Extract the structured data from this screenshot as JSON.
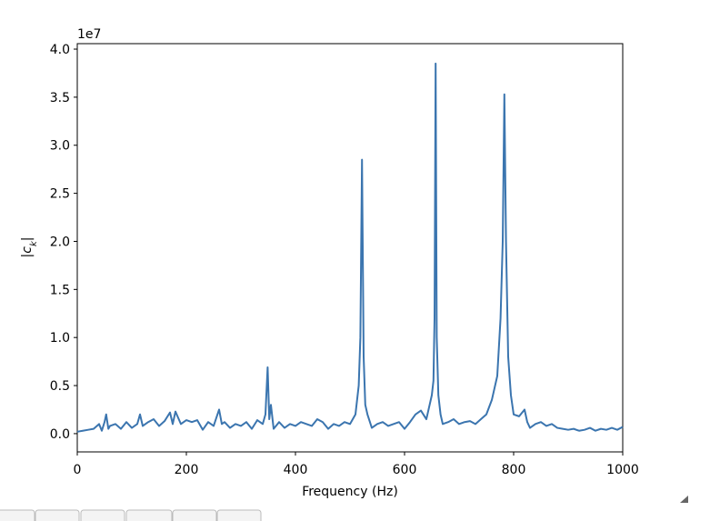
{
  "chart_data": {
    "type": "line",
    "xlabel": "Frequency (Hz)",
    "ylabel": "|c_k|",
    "offset_text": "1e7",
    "xlim": [
      0,
      1000
    ],
    "ylim": [
      -0.19,
      4.057
    ],
    "xticks": [
      0,
      200,
      400,
      600,
      800,
      1000
    ],
    "yticks": [
      {
        "value": 0,
        "label": "0.0"
      },
      {
        "value": 0.5,
        "label": "0.5"
      },
      {
        "value": 1,
        "label": "1.0"
      },
      {
        "value": 1.5,
        "label": "1.5"
      },
      {
        "value": 2,
        "label": "2.0"
      },
      {
        "value": 2.5,
        "label": "2.5"
      },
      {
        "value": 3,
        "label": "3.0"
      },
      {
        "value": 3.5,
        "label": "3.5"
      },
      {
        "value": 4,
        "label": "4.0"
      }
    ],
    "color": "#3b75af",
    "x": [
      0,
      10,
      20,
      30,
      40,
      45,
      50,
      53,
      57,
      60,
      70,
      80,
      90,
      100,
      110,
      115,
      120,
      130,
      140,
      150,
      160,
      170,
      175,
      180,
      190,
      200,
      210,
      220,
      230,
      240,
      250,
      260,
      265,
      270,
      280,
      290,
      300,
      310,
      320,
      330,
      340,
      345,
      349,
      352,
      355,
      360,
      370,
      380,
      390,
      400,
      410,
      420,
      430,
      440,
      450,
      460,
      470,
      480,
      490,
      500,
      510,
      516,
      519,
      522,
      525,
      528,
      532,
      540,
      550,
      560,
      570,
      580,
      590,
      600,
      610,
      620,
      630,
      640,
      650,
      653,
      655,
      657,
      659,
      662,
      666,
      670,
      680,
      690,
      700,
      710,
      720,
      730,
      740,
      750,
      760,
      770,
      776,
      780,
      783,
      786,
      790,
      795,
      800,
      810,
      820,
      825,
      830,
      840,
      850,
      860,
      870,
      880,
      890,
      900,
      910,
      920,
      930,
      940,
      950,
      960,
      970,
      980,
      990,
      1000
    ],
    "values": [
      0.02,
      0.03,
      0.04,
      0.05,
      0.1,
      0.03,
      0.12,
      0.2,
      0.05,
      0.08,
      0.1,
      0.05,
      0.12,
      0.06,
      0.1,
      0.2,
      0.08,
      0.12,
      0.15,
      0.08,
      0.13,
      0.22,
      0.1,
      0.23,
      0.1,
      0.14,
      0.12,
      0.14,
      0.04,
      0.12,
      0.08,
      0.25,
      0.1,
      0.12,
      0.06,
      0.1,
      0.08,
      0.12,
      0.05,
      0.14,
      0.1,
      0.2,
      0.69,
      0.15,
      0.3,
      0.05,
      0.12,
      0.06,
      0.1,
      0.08,
      0.12,
      0.1,
      0.08,
      0.15,
      0.12,
      0.05,
      0.1,
      0.08,
      0.12,
      0.1,
      0.2,
      0.5,
      1.0,
      2.85,
      0.8,
      0.3,
      0.2,
      0.06,
      0.1,
      0.12,
      0.08,
      0.1,
      0.12,
      0.05,
      0.12,
      0.2,
      0.24,
      0.15,
      0.4,
      0.55,
      1.2,
      3.85,
      1.0,
      0.4,
      0.2,
      0.1,
      0.12,
      0.15,
      0.1,
      0.12,
      0.13,
      0.1,
      0.15,
      0.2,
      0.35,
      0.6,
      1.2,
      2.0,
      3.53,
      2.0,
      0.8,
      0.4,
      0.2,
      0.18,
      0.25,
      0.12,
      0.06,
      0.1,
      0.12,
      0.08,
      0.1,
      0.06,
      0.05,
      0.04,
      0.05,
      0.03,
      0.04,
      0.06,
      0.03,
      0.05,
      0.04,
      0.06,
      0.04,
      0.07
    ]
  }
}
